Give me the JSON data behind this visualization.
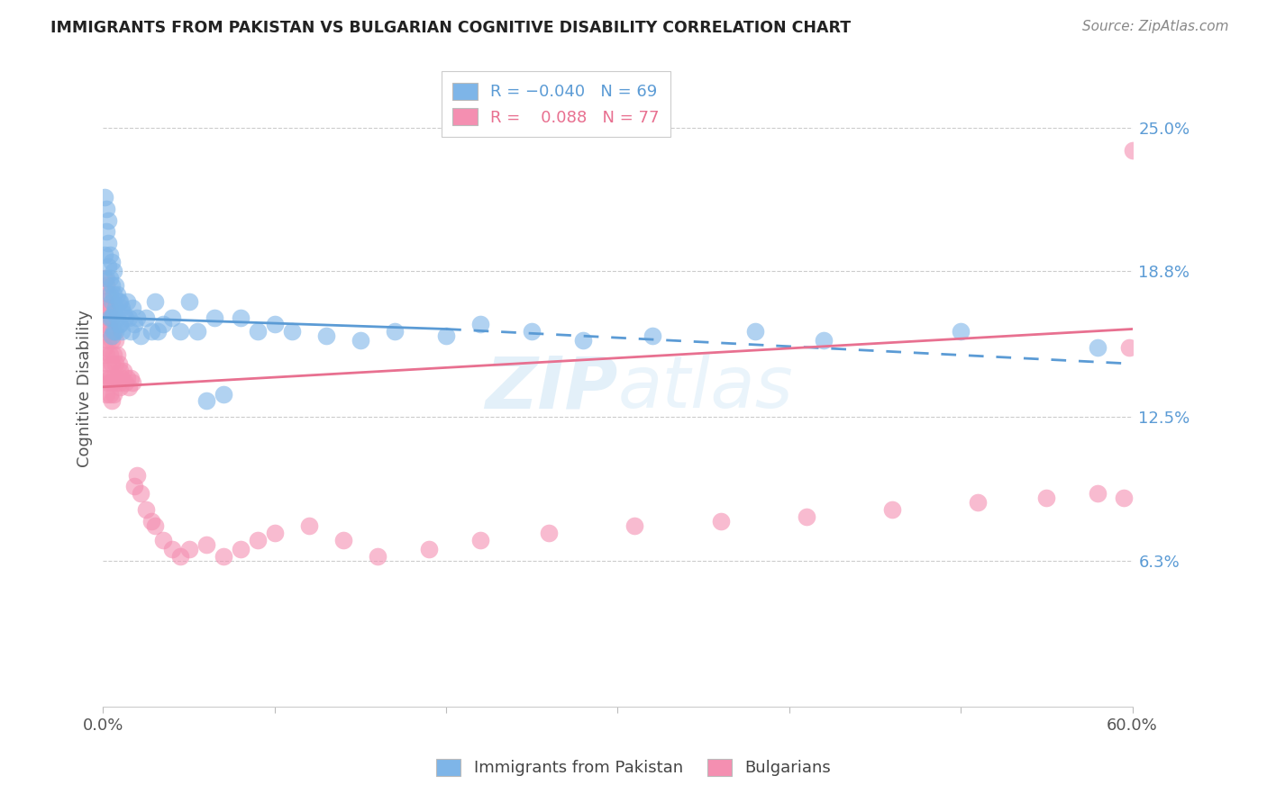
{
  "title": "IMMIGRANTS FROM PAKISTAN VS BULGARIAN COGNITIVE DISABILITY CORRELATION CHART",
  "source": "Source: ZipAtlas.com",
  "ylabel": "Cognitive Disability",
  "ytick_labels": [
    "6.3%",
    "12.5%",
    "18.8%",
    "25.0%"
  ],
  "ytick_values": [
    0.063,
    0.125,
    0.188,
    0.25
  ],
  "xlim": [
    0.0,
    0.6
  ],
  "ylim": [
    0.0,
    0.275
  ],
  "legend_r_blue": "-0.040",
  "legend_n_blue": "69",
  "legend_r_pink": "0.088",
  "legend_n_pink": "77",
  "color_blue": "#7EB5E8",
  "color_pink": "#F48FB1",
  "color_blue_line": "#5B9BD5",
  "color_pink_line": "#E87090",
  "watermark_zip": "ZIP",
  "watermark_atlas": "atlas",
  "blue_x": [
    0.001,
    0.001,
    0.002,
    0.002,
    0.002,
    0.003,
    0.003,
    0.003,
    0.004,
    0.004,
    0.004,
    0.004,
    0.005,
    0.005,
    0.005,
    0.005,
    0.005,
    0.006,
    0.006,
    0.006,
    0.006,
    0.007,
    0.007,
    0.007,
    0.008,
    0.008,
    0.009,
    0.009,
    0.01,
    0.01,
    0.011,
    0.011,
    0.012,
    0.013,
    0.014,
    0.015,
    0.016,
    0.017,
    0.018,
    0.02,
    0.022,
    0.025,
    0.028,
    0.03,
    0.032,
    0.035,
    0.04,
    0.045,
    0.05,
    0.055,
    0.06,
    0.065,
    0.07,
    0.08,
    0.09,
    0.1,
    0.11,
    0.13,
    0.15,
    0.17,
    0.2,
    0.22,
    0.25,
    0.28,
    0.32,
    0.38,
    0.42,
    0.5,
    0.58
  ],
  "blue_y": [
    0.22,
    0.195,
    0.215,
    0.205,
    0.185,
    0.21,
    0.2,
    0.19,
    0.195,
    0.185,
    0.178,
    0.168,
    0.192,
    0.182,
    0.175,
    0.168,
    0.16,
    0.188,
    0.178,
    0.17,
    0.162,
    0.182,
    0.172,
    0.162,
    0.178,
    0.168,
    0.175,
    0.165,
    0.175,
    0.165,
    0.172,
    0.162,
    0.17,
    0.168,
    0.175,
    0.168,
    0.162,
    0.172,
    0.165,
    0.168,
    0.16,
    0.168,
    0.162,
    0.175,
    0.162,
    0.165,
    0.168,
    0.162,
    0.175,
    0.162,
    0.132,
    0.168,
    0.135,
    0.168,
    0.162,
    0.165,
    0.162,
    0.16,
    0.158,
    0.162,
    0.16,
    0.165,
    0.162,
    0.158,
    0.16,
    0.162,
    0.158,
    0.162,
    0.155
  ],
  "pink_x": [
    0.001,
    0.001,
    0.001,
    0.001,
    0.001,
    0.002,
    0.002,
    0.002,
    0.002,
    0.002,
    0.002,
    0.003,
    0.003,
    0.003,
    0.003,
    0.003,
    0.004,
    0.004,
    0.004,
    0.004,
    0.004,
    0.005,
    0.005,
    0.005,
    0.005,
    0.005,
    0.006,
    0.006,
    0.006,
    0.006,
    0.007,
    0.007,
    0.007,
    0.008,
    0.008,
    0.009,
    0.009,
    0.01,
    0.01,
    0.011,
    0.012,
    0.013,
    0.014,
    0.015,
    0.016,
    0.017,
    0.018,
    0.02,
    0.022,
    0.025,
    0.028,
    0.03,
    0.035,
    0.04,
    0.045,
    0.05,
    0.06,
    0.07,
    0.08,
    0.09,
    0.1,
    0.12,
    0.14,
    0.16,
    0.19,
    0.22,
    0.26,
    0.31,
    0.36,
    0.41,
    0.46,
    0.51,
    0.55,
    0.58,
    0.595,
    0.598,
    0.6
  ],
  "pink_y": [
    0.185,
    0.175,
    0.165,
    0.155,
    0.145,
    0.182,
    0.172,
    0.162,
    0.152,
    0.142,
    0.135,
    0.178,
    0.168,
    0.158,
    0.148,
    0.14,
    0.172,
    0.162,
    0.152,
    0.142,
    0.135,
    0.168,
    0.158,
    0.148,
    0.14,
    0.132,
    0.162,
    0.152,
    0.142,
    0.135,
    0.158,
    0.148,
    0.14,
    0.152,
    0.142,
    0.148,
    0.14,
    0.145,
    0.138,
    0.142,
    0.145,
    0.14,
    0.142,
    0.138,
    0.142,
    0.14,
    0.095,
    0.1,
    0.092,
    0.085,
    0.08,
    0.078,
    0.072,
    0.068,
    0.065,
    0.068,
    0.07,
    0.065,
    0.068,
    0.072,
    0.075,
    0.078,
    0.072,
    0.065,
    0.068,
    0.072,
    0.075,
    0.078,
    0.08,
    0.082,
    0.085,
    0.088,
    0.09,
    0.092,
    0.09,
    0.155,
    0.24
  ],
  "blue_line_x0": 0.0,
  "blue_line_x_split": 0.2,
  "blue_line_x1": 0.6,
  "blue_line_y_start": 0.168,
  "blue_line_y_split": 0.163,
  "blue_line_y_end": 0.148,
  "pink_line_x0": 0.0,
  "pink_line_x1": 0.6,
  "pink_line_y_start": 0.138,
  "pink_line_y_end": 0.163
}
